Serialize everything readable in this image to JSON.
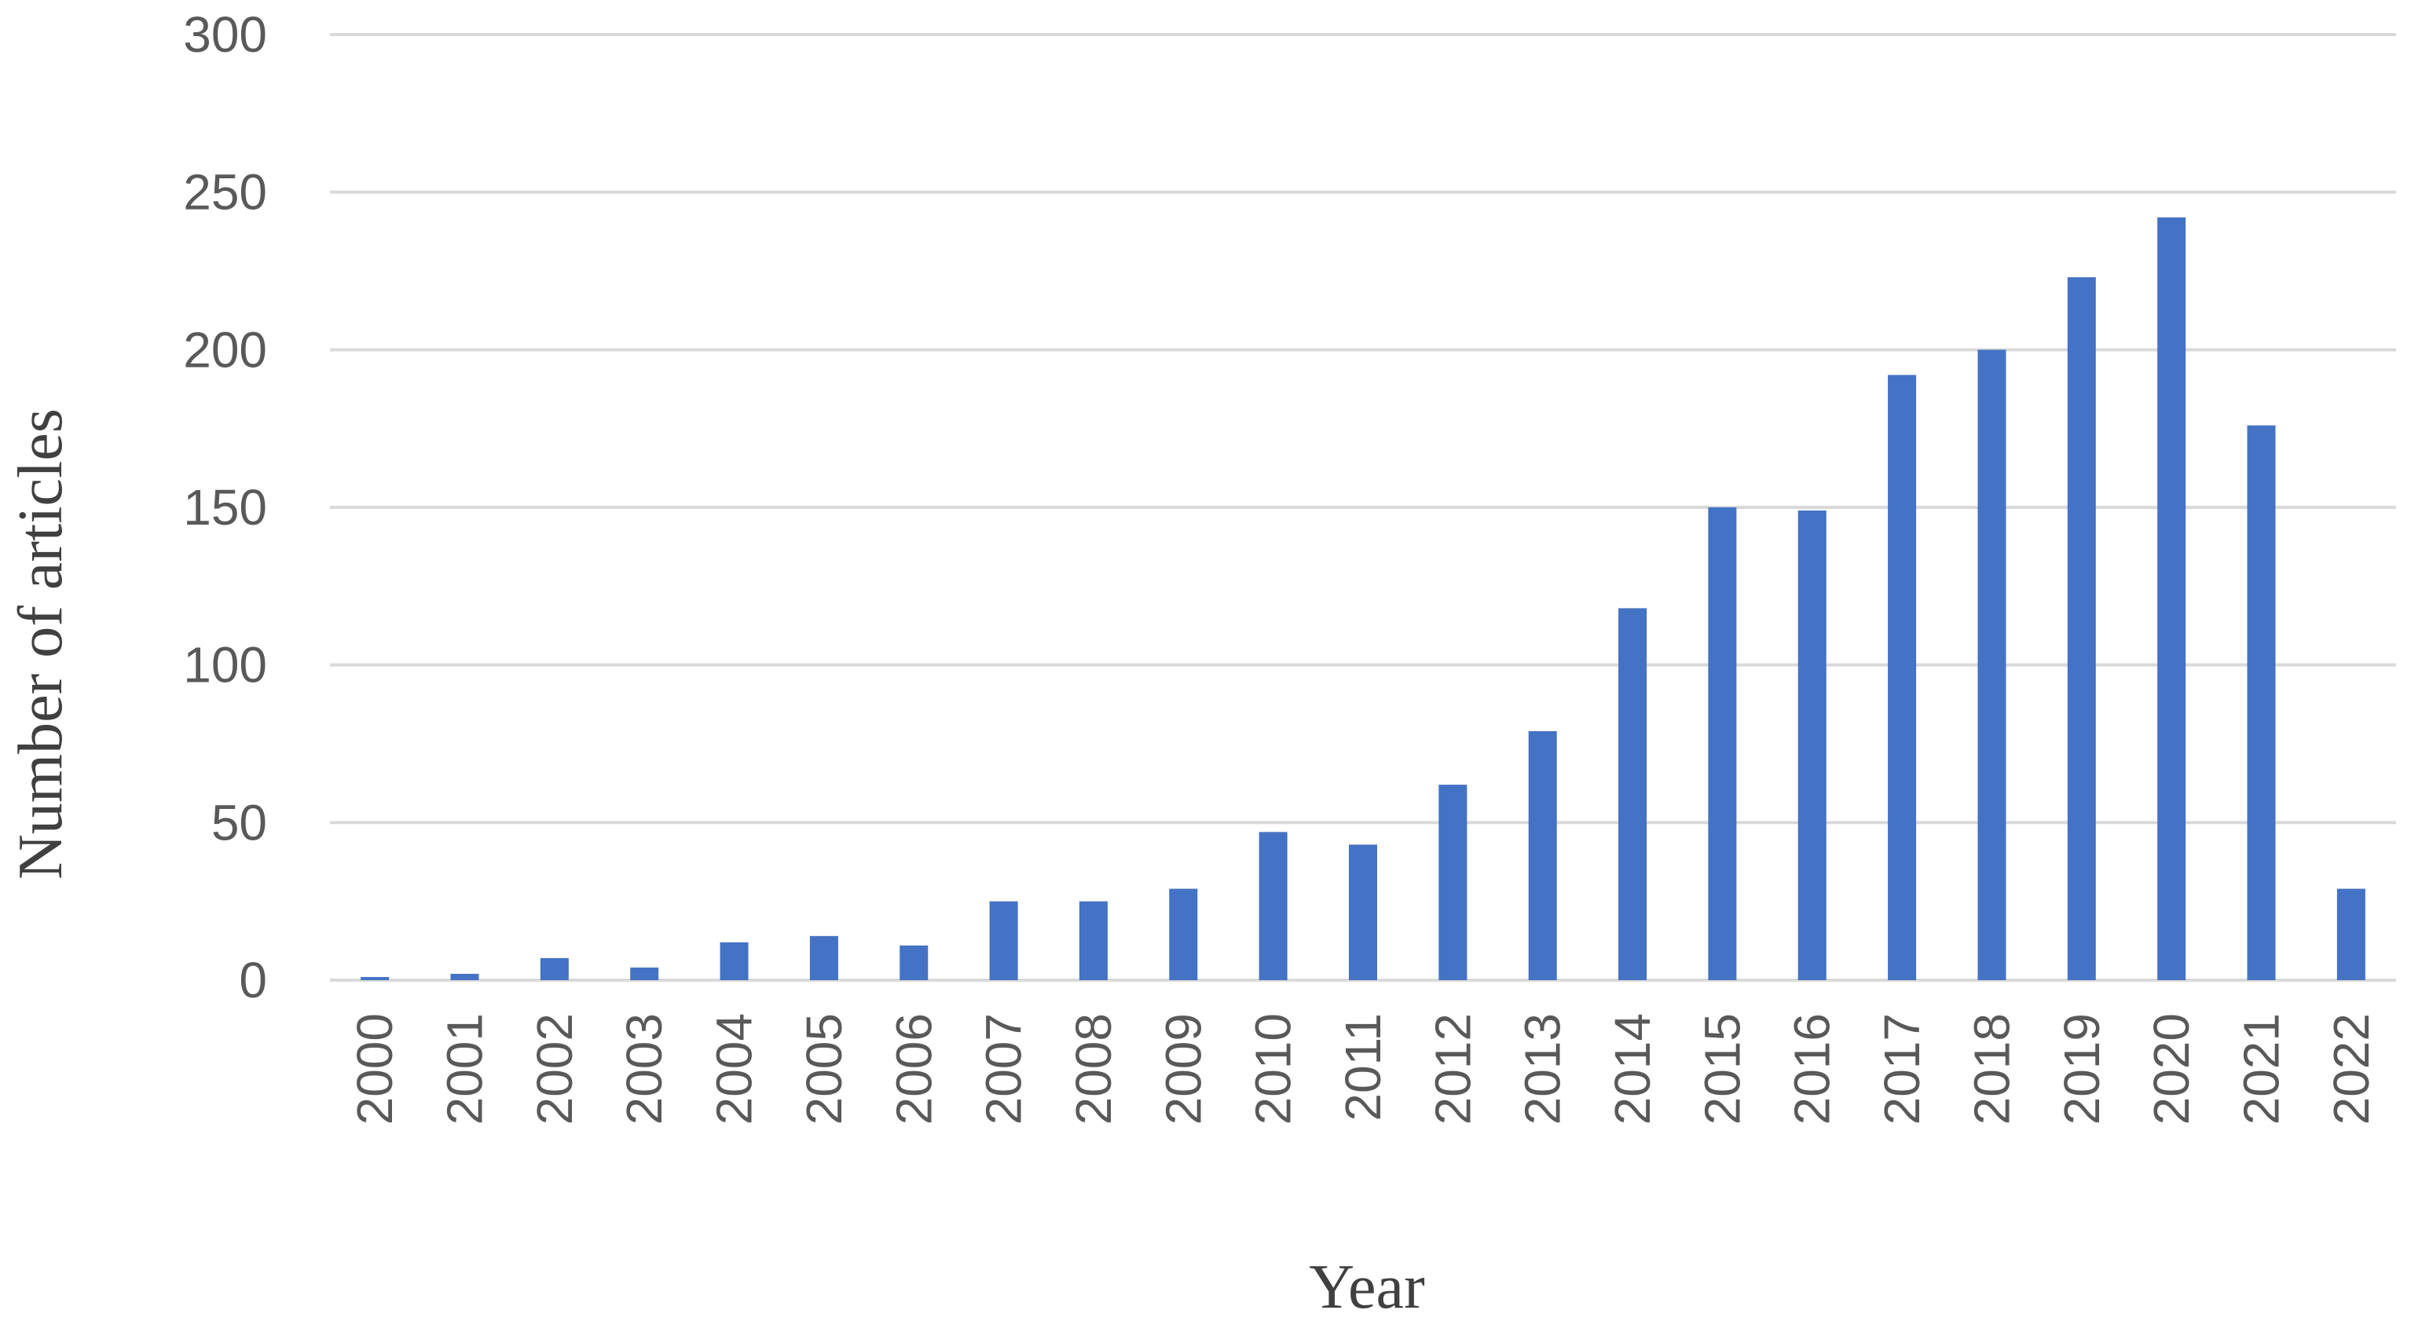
{
  "chart_data": {
    "type": "bar",
    "categories": [
      "2000",
      "2001",
      "2002",
      "2003",
      "2004",
      "2005",
      "2006",
      "2007",
      "2008",
      "2009",
      "2010",
      "2011",
      "2012",
      "2013",
      "2014",
      "2015",
      "2016",
      "2017",
      "2018",
      "2019",
      "2020",
      "2021",
      "2022"
    ],
    "values": [
      1,
      2,
      7,
      4,
      12,
      14,
      11,
      25,
      25,
      29,
      47,
      43,
      62,
      79,
      118,
      150,
      149,
      192,
      200,
      223,
      242,
      176,
      29
    ],
    "xlabel": "Year",
    "ylabel": "Number of articles",
    "ylim": [
      0,
      300
    ],
    "yticks": [
      0,
      50,
      100,
      150,
      200,
      250,
      300
    ],
    "bar_color": "#4472c4",
    "grid": true,
    "legend": "none"
  }
}
